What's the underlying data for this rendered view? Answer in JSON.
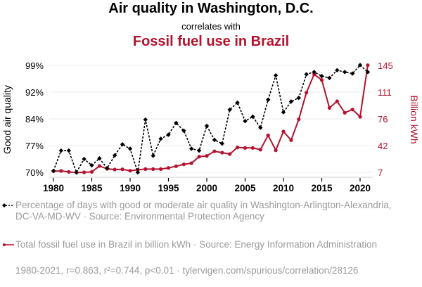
{
  "header": {
    "title": "Air quality in Washington, D.C.",
    "connector": "correlates with",
    "title2": "Fossil fuel use in Brazil"
  },
  "legend": {
    "series1": "Percentage of days with good or moderate air quality in Washington-Arlington-Alexandria, DC-VA-MD-WV · Source: Environmental Protection Agency",
    "series2": "Total fossil fuel use in Brazil in billion kWh · Source: Energy Information Administration"
  },
  "footer": "1980-2021, r=0.863, r²=0.744, p<0.01 · tylervigen.com/spurious/correlation/28126",
  "colors": {
    "series1": "#000000",
    "series2": "#b5122e",
    "grid": "#eeeeee",
    "legend_text": "#9a9a9a"
  },
  "chart_data": {
    "type": "line",
    "title": "Air quality in Washington, D.C. correlates with Fossil fuel use in Brazil",
    "xlabel": "",
    "ylabel_left": "Good air quality",
    "ylabel_right": "Billion kWh",
    "xlim": [
      1980,
      2021
    ],
    "x_ticks": [
      1980,
      1985,
      1990,
      1995,
      2000,
      2005,
      2010,
      2015,
      2020
    ],
    "y_left_ticks": [
      "70%",
      "77%",
      "84%",
      "92%",
      "99%"
    ],
    "y_left_range": [
      70,
      99
    ],
    "y_right_ticks": [
      "7",
      "42",
      "76",
      "111",
      "145"
    ],
    "y_right_range": [
      7,
      145
    ],
    "grid": true,
    "legend_position": "bottom",
    "x": [
      1980,
      1981,
      1982,
      1983,
      1984,
      1985,
      1986,
      1987,
      1988,
      1989,
      1990,
      1991,
      1992,
      1993,
      1994,
      1995,
      1996,
      1997,
      1998,
      1999,
      2000,
      2001,
      2002,
      2003,
      2004,
      2005,
      2006,
      2007,
      2008,
      2009,
      2010,
      2011,
      2012,
      2013,
      2014,
      2015,
      2016,
      2017,
      2018,
      2019,
      2020,
      2021
    ],
    "series": [
      {
        "name": "Percentage of days with good or moderate air quality in Washington-Arlington-Alexandria, DC-VA-MD-WV",
        "axis": "left",
        "style": "dashed-diamond",
        "values": [
          70.4,
          75.9,
          75.9,
          70.0,
          73.6,
          71.9,
          73.8,
          71.1,
          74.6,
          77.6,
          76.4,
          70.0,
          84.3,
          74.5,
          79.1,
          80.2,
          83.4,
          81.3,
          76.4,
          75.9,
          82.6,
          78.8,
          77.8,
          87.0,
          88.9,
          83.9,
          85.1,
          82.1,
          89.7,
          96.3,
          86.3,
          89.2,
          90.2,
          96.6,
          97.2,
          96.1,
          95.6,
          97.7,
          97.2,
          96.8,
          99.1,
          97.2
        ]
      },
      {
        "name": "Total fossil fuel use in Brazil in billion kWh",
        "axis": "right",
        "style": "solid-dot",
        "values": [
          8.5,
          8.8,
          7.6,
          6.7,
          7.0,
          7.6,
          15.2,
          11.5,
          10.6,
          10.9,
          9.1,
          10.3,
          11.2,
          11.2,
          11.2,
          12.7,
          14.9,
          17.3,
          18.8,
          27.2,
          28.2,
          34.2,
          32.4,
          30.6,
          39.1,
          38.5,
          38.5,
          36.3,
          54.8,
          35.5,
          59.7,
          48.5,
          75.4,
          110.0,
          133.5,
          126.2,
          90.2,
          98.7,
          83.9,
          88.1,
          78.7,
          145.3
        ]
      }
    ]
  }
}
